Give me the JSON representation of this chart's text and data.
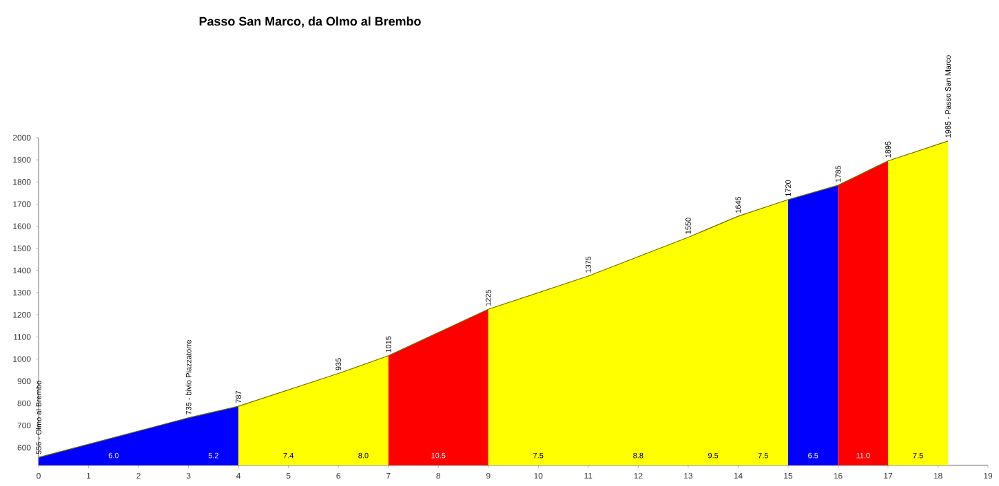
{
  "chart_data": {
    "type": "area",
    "title": "Passo San Marco, da Olmo al Brembo",
    "series": [
      {
        "color": "#0000ff",
        "x": [
          0,
          3,
          4
        ],
        "values": [
          556,
          735,
          787
        ]
      },
      {
        "color": "#ffff00",
        "x": [
          4,
          6,
          7
        ],
        "values": [
          787,
          935,
          1015
        ]
      },
      {
        "color": "#ff0000",
        "x": [
          7,
          9
        ],
        "values": [
          1015,
          1225
        ]
      },
      {
        "color": "#ffff00",
        "x": [
          9,
          11,
          13,
          14,
          15
        ],
        "values": [
          1225,
          1375,
          1550,
          1645,
          1720
        ]
      },
      {
        "color": "#0000ff",
        "x": [
          15,
          16
        ],
        "values": [
          1720,
          1785
        ]
      },
      {
        "color": "#ff0000",
        "x": [
          16,
          17
        ],
        "values": [
          1785,
          1895
        ]
      },
      {
        "color": "#ffff00",
        "x": [
          17,
          18.2
        ],
        "values": [
          1895,
          1985
        ]
      }
    ],
    "xlim": [
      0,
      19
    ],
    "xticks": [
      0,
      1,
      2,
      3,
      4,
      5,
      6,
      7,
      8,
      9,
      10,
      11,
      12,
      13,
      14,
      15,
      16,
      17,
      18,
      19
    ],
    "ylim": [
      520,
      2000
    ],
    "yticks": [
      600,
      700,
      800,
      900,
      1000,
      1100,
      1200,
      1300,
      1400,
      1500,
      1600,
      1700,
      1800,
      1900,
      2000
    ],
    "grid": false,
    "annotations": [
      {
        "text": "556 - Olmo al Brembo",
        "x": 0,
        "y": 556
      },
      {
        "text": "735 - bivio Piazzatorre",
        "x": 3,
        "y": 735
      },
      {
        "text": "787",
        "x": 4,
        "y": 787
      },
      {
        "text": "935",
        "x": 6,
        "y": 935
      },
      {
        "text": "1015",
        "x": 7,
        "y": 1015
      },
      {
        "text": "1225",
        "x": 9,
        "y": 1225
      },
      {
        "text": "1375",
        "x": 11,
        "y": 1375
      },
      {
        "text": "1550",
        "x": 13,
        "y": 1550
      },
      {
        "text": "1645",
        "x": 14,
        "y": 1645
      },
      {
        "text": "1720",
        "x": 15,
        "y": 1720
      },
      {
        "text": "1785",
        "x": 16,
        "y": 1785
      },
      {
        "text": "1895",
        "x": 17,
        "y": 1895
      },
      {
        "text": "1985 - Passo San Marco",
        "x": 18.2,
        "y": 1985
      },
      "6.0",
      "5.2",
      "7.4",
      "8.0",
      "10.5",
      "7.5",
      "8.8",
      "9.5",
      "7.5",
      "6.5",
      "11.0",
      "7.5"
    ]
  }
}
